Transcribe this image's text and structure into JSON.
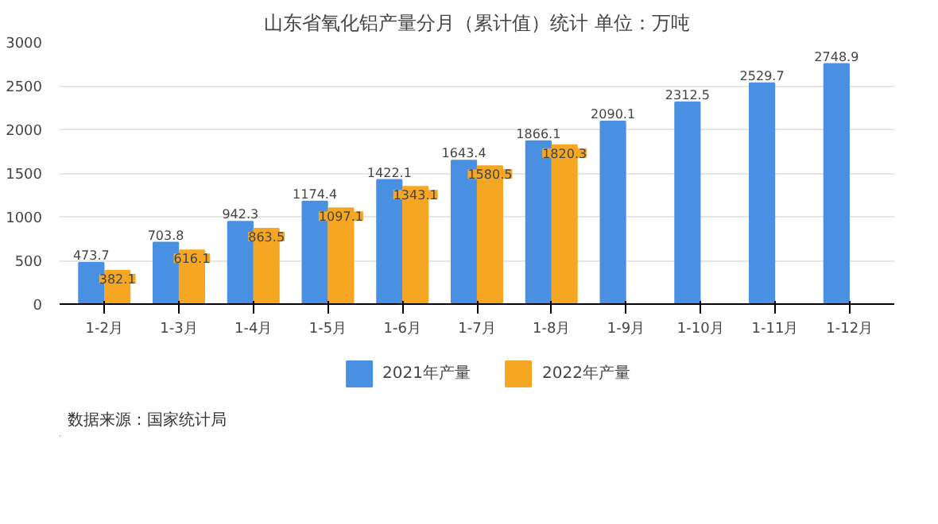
{
  "chart_data": {
    "type": "bar",
    "title": "山东省氧化铝产量分月（累计值）统计 单位：万吨",
    "categories": [
      "1-2月",
      "1-3月",
      "1-4月",
      "1-5月",
      "1-6月",
      "1-7月",
      "1-8月",
      "1-9月",
      "1-10月",
      "1-11月",
      "1-12月"
    ],
    "series": [
      {
        "name": "2021年产量",
        "color": "#4a90e2",
        "values": [
          473.7,
          703.8,
          942.3,
          1174.4,
          1422.1,
          1643.4,
          1866.1,
          2090.1,
          2312.5,
          2529.7,
          2748.9
        ]
      },
      {
        "name": "2022年产量",
        "color": "#f5a623",
        "values": [
          382.1,
          616.1,
          863.5,
          1097.1,
          1343.1,
          1580.5,
          1820.3,
          null,
          null,
          null,
          null
        ]
      }
    ],
    "ylim": [
      0,
      3000
    ],
    "yticks": [
      0,
      500,
      1000,
      1500,
      2000,
      2500,
      3000
    ],
    "grid": "y",
    "legend": "bottom",
    "data_labels": true,
    "annotations": [
      "数据来源：国家统计局"
    ]
  }
}
